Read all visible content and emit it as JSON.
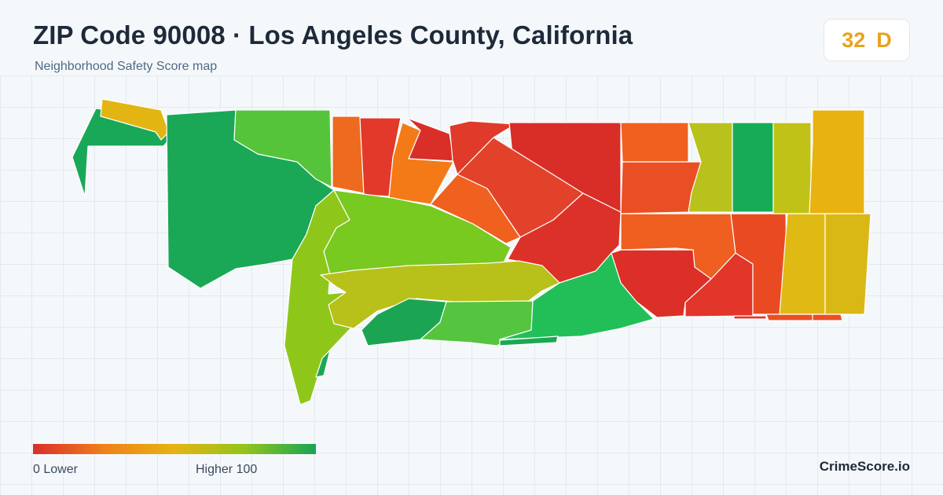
{
  "header": {
    "title": "ZIP Code 90008 · Los Angeles County, California",
    "subtitle": "Neighborhood Safety Score map"
  },
  "score": {
    "value": "32",
    "grade": "D",
    "color": "#e9a21c"
  },
  "legend": {
    "min_label": "0  Lower",
    "max_label": "Higher  100",
    "colors": [
      "#d92e2a",
      "#f0801a",
      "#e6b412",
      "#92c41c",
      "#16a555"
    ]
  },
  "brand": "CrimeScore.io"
}
